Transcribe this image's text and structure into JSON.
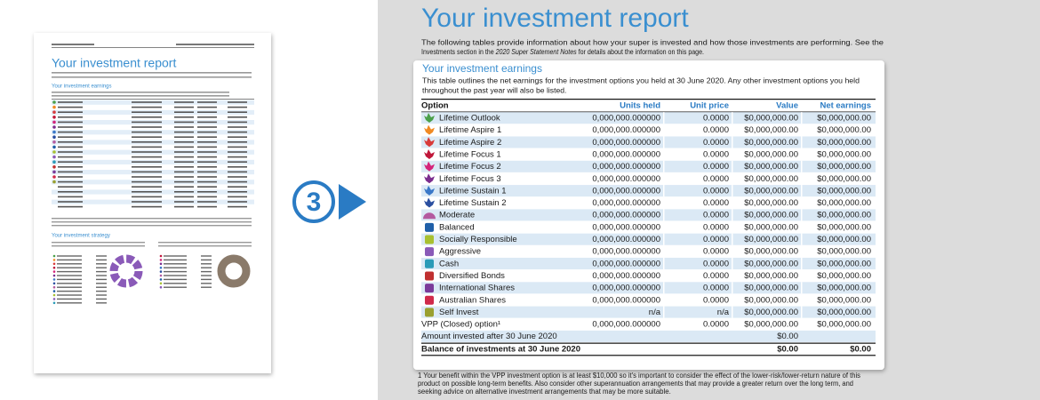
{
  "step": "3",
  "report": {
    "title": "Your investment report",
    "intro_line1": "The following tables provide information about how your super is invested and how those investments are performing. See the",
    "intro_line2": {
      "before": "Investments section in the ",
      "em": "2020 Super Statement Notes",
      "after": " for details about the information on this page."
    }
  },
  "thumbnail": {
    "strategy_heading": "Your investment strategy"
  },
  "earnings": {
    "heading": "Your investment earnings",
    "description": [
      "This table outlines the net earnings for the investment options you held at 30 June 2020. Any other investment options you held",
      "throughout the past year will also be listed."
    ],
    "table": {
      "header": [
        "Option",
        "Units held",
        "Unit price",
        "Value",
        "Net earnings"
      ],
      "rows": [
        [
          "Lifetime Outlook",
          "0,000,000.000000",
          "0.0000",
          "$0,000,000.00",
          "$0,000,000.00"
        ],
        [
          "Lifetime Aspire 1",
          "0,000,000.000000",
          "0.0000",
          "$0,000,000.00",
          "$0,000,000.00"
        ],
        [
          "Lifetime Aspire 2",
          "0,000,000.000000",
          "0.0000",
          "$0,000,000.00",
          "$0,000,000.00"
        ],
        [
          "Lifetime Focus 1",
          "0,000,000.000000",
          "0.0000",
          "$0,000,000.00",
          "$0,000,000.00"
        ],
        [
          "Lifetime Focus 2",
          "0,000,000.000000",
          "0.0000",
          "$0,000,000.00",
          "$0,000,000.00"
        ],
        [
          "Lifetime Focus 3",
          "0,000,000.000000",
          "0.0000",
          "$0,000,000.00",
          "$0,000,000.00"
        ],
        [
          "Lifetime Sustain 1",
          "0,000,000.000000",
          "0.0000",
          "$0,000,000.00",
          "$0,000,000.00"
        ],
        [
          "Lifetime Sustain 2",
          "0,000,000.000000",
          "0.0000",
          "$0,000,000.00",
          "$0,000,000.00"
        ],
        [
          "Moderate",
          "0,000,000.000000",
          "0.0000",
          "$0,000,000.00",
          "$0,000,000.00"
        ],
        [
          "Balanced",
          "0,000,000.000000",
          "0.0000",
          "$0,000,000.00",
          "$0,000,000.00"
        ],
        [
          "Socially Responsible",
          "0,000,000.000000",
          "0.0000",
          "$0,000,000.00",
          "$0,000,000.00"
        ],
        [
          "Aggressive",
          "0,000,000.000000",
          "0.0000",
          "$0,000,000.00",
          "$0,000,000.00"
        ],
        [
          "Cash",
          "0,000,000.000000",
          "0.0000",
          "$0,000,000.00",
          "$0,000,000.00"
        ],
        [
          "Diversified Bonds",
          "0,000,000.000000",
          "0.0000",
          "$0,000,000.00",
          "$0,000,000.00"
        ],
        [
          "International Shares",
          "0,000,000.000000",
          "0.0000",
          "$0,000,000.00",
          "$0,000,000.00"
        ],
        [
          "Australian Shares",
          "0,000,000.000000",
          "0.0000",
          "$0,000,000.00",
          "$0,000,000.00"
        ],
        [
          "Self Invest",
          "n/a",
          "n/a",
          "$0,000,000.00",
          "$0,000,000.00"
        ],
        [
          "VPP (Closed) option¹",
          "0,000,000.000000",
          "0.0000",
          "$0,000,000.00",
          "$0,000,000.00"
        ]
      ]
    },
    "amount_invested": {
      "label": "Amount invested after 30 June 2020",
      "value": "$0.00"
    },
    "balance": {
      "label": "Balance of investments at 30 June 2020",
      "value": "$0.00",
      "net": "$0.00"
    }
  },
  "footnote": [
    "1 Your benefit within the VPP investment option is at least $10,000 so it's important to consider the effect of the lower-risk/lower-return nature of this",
    "product on possible long-term benefits. Also consider other superannuation arrangements that may provide a greater return over the long term, and",
    "seeking advice on alternative investment arrangements that may be more suitable."
  ]
}
